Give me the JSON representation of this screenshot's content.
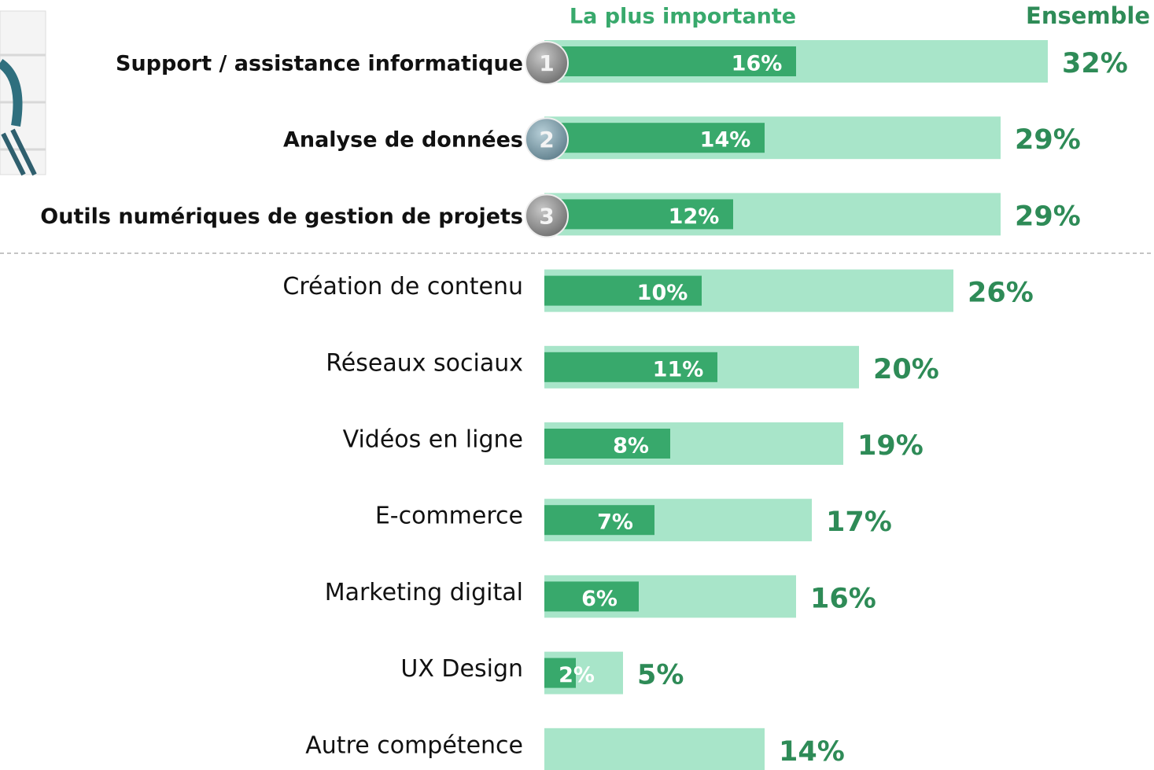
{
  "chart_data": {
    "type": "bar",
    "categories": [
      "Support / assistance informatique",
      "Analyse de données",
      "Outils numériques de gestion de projets",
      "Création de contenu",
      "Réseaux sociaux",
      "Vidéos en ligne",
      "E-commerce",
      "Marketing digital",
      "UX Design",
      "Autre compétence"
    ],
    "rank_badges": [
      "1",
      "2",
      "3"
    ],
    "series": [
      {
        "name": "La plus importante",
        "color": "#38a96c",
        "values": [
          16,
          14,
          12,
          10,
          11,
          8,
          7,
          6,
          2,
          null
        ],
        "value_labels": [
          "16%",
          "14%",
          "12%",
          "10%",
          "11%",
          "8%",
          "7%",
          "6%",
          "2%",
          null
        ]
      },
      {
        "name": "Ensemble",
        "color": "#a8e5c9",
        "values": [
          32,
          29,
          29,
          26,
          20,
          19,
          17,
          16,
          5,
          14
        ],
        "value_labels": [
          "32%",
          "29%",
          "29%",
          "26%",
          "20%",
          "19%",
          "17%",
          "16%",
          "5%",
          "14%"
        ]
      }
    ]
  }
}
